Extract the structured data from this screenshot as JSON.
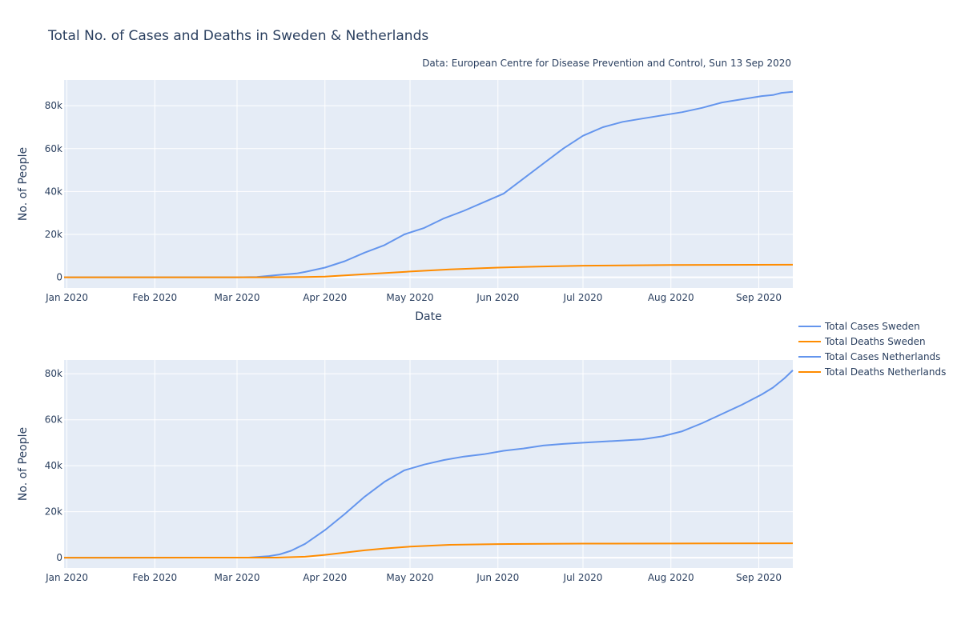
{
  "title": "Total No. of Cases and Deaths in Sweden & Netherlands",
  "source_note": "Data: European Centre for Disease Prevention and Control, Sun 13 Sep 2020",
  "legend": [
    {
      "name": "Total Cases Sweden",
      "color": "#6495ED"
    },
    {
      "name": "Total Deaths Sweden",
      "color": "#FF8C00"
    },
    {
      "name": "Total Cases Netherlands",
      "color": "#6495ED"
    },
    {
      "name": "Total Deaths Netherlands",
      "color": "#FF8C00"
    }
  ],
  "colors": {
    "plot_bg": "#E5ECF6",
    "grid": "#ffffff",
    "text": "#2a3f5f"
  },
  "chart_data": [
    {
      "type": "line",
      "xlabel": "Date",
      "ylabel": "No. of People",
      "x_range": [
        "2019-12-31",
        "2020-09-13"
      ],
      "ylim": [
        -5000,
        92000
      ],
      "x_ticks": [
        {
          "date": "2020-01-01",
          "label": "Jan 2020"
        },
        {
          "date": "2020-02-01",
          "label": "Feb 2020"
        },
        {
          "date": "2020-03-01",
          "label": "Mar 2020"
        },
        {
          "date": "2020-04-01",
          "label": "Apr 2020"
        },
        {
          "date": "2020-05-01",
          "label": "May 2020"
        },
        {
          "date": "2020-06-01",
          "label": "Jun 2020"
        },
        {
          "date": "2020-07-01",
          "label": "Jul 2020"
        },
        {
          "date": "2020-08-01",
          "label": "Aug 2020"
        },
        {
          "date": "2020-09-01",
          "label": "Sep 2020"
        }
      ],
      "y_ticks": [
        {
          "value": 0,
          "label": "0"
        },
        {
          "value": 20000,
          "label": "20k"
        },
        {
          "value": 40000,
          "label": "40k"
        },
        {
          "value": 60000,
          "label": "60k"
        },
        {
          "value": 80000,
          "label": "80k"
        }
      ],
      "series": [
        {
          "name": "Total Cases Sweden",
          "color": "#6495ED",
          "points": [
            [
              "2019-12-31",
              0
            ],
            [
              "2020-03-01",
              10
            ],
            [
              "2020-03-08",
              100
            ],
            [
              "2020-03-15",
              1000
            ],
            [
              "2020-03-22",
              1800
            ],
            [
              "2020-03-25",
              2500
            ],
            [
              "2020-04-01",
              4500
            ],
            [
              "2020-04-08",
              7500
            ],
            [
              "2020-04-15",
              11500
            ],
            [
              "2020-04-22",
              15000
            ],
            [
              "2020-04-29",
              20000
            ],
            [
              "2020-05-06",
              23000
            ],
            [
              "2020-05-13",
              27500
            ],
            [
              "2020-05-20",
              31000
            ],
            [
              "2020-05-27",
              35000
            ],
            [
              "2020-06-03",
              39000
            ],
            [
              "2020-06-10",
              46000
            ],
            [
              "2020-06-17",
              53000
            ],
            [
              "2020-06-24",
              60000
            ],
            [
              "2020-07-01",
              66000
            ],
            [
              "2020-07-08",
              70000
            ],
            [
              "2020-07-15",
              72500
            ],
            [
              "2020-07-22",
              74000
            ],
            [
              "2020-07-29",
              75500
            ],
            [
              "2020-08-05",
              77000
            ],
            [
              "2020-08-12",
              79000
            ],
            [
              "2020-08-19",
              81500
            ],
            [
              "2020-08-26",
              83000
            ],
            [
              "2020-09-02",
              84500
            ],
            [
              "2020-09-06",
              85000
            ],
            [
              "2020-09-09",
              86000
            ],
            [
              "2020-09-13",
              86500
            ]
          ]
        },
        {
          "name": "Total Deaths Sweden",
          "color": "#FF8C00",
          "points": [
            [
              "2019-12-31",
              0
            ],
            [
              "2020-03-10",
              1
            ],
            [
              "2020-03-25",
              100
            ],
            [
              "2020-04-01",
              300
            ],
            [
              "2020-04-15",
              1400
            ],
            [
              "2020-05-01",
              2700
            ],
            [
              "2020-05-15",
              3700
            ],
            [
              "2020-06-01",
              4500
            ],
            [
              "2020-06-15",
              5000
            ],
            [
              "2020-07-01",
              5400
            ],
            [
              "2020-08-01",
              5750
            ],
            [
              "2020-09-13",
              5850
            ]
          ]
        }
      ]
    },
    {
      "type": "line",
      "xlabel": "",
      "ylabel": "No. of People",
      "x_range": [
        "2019-12-31",
        "2020-09-13"
      ],
      "ylim": [
        -4500,
        86000
      ],
      "x_ticks": [
        {
          "date": "2020-01-01",
          "label": "Jan 2020"
        },
        {
          "date": "2020-02-01",
          "label": "Feb 2020"
        },
        {
          "date": "2020-03-01",
          "label": "Mar 2020"
        },
        {
          "date": "2020-04-01",
          "label": "Apr 2020"
        },
        {
          "date": "2020-05-01",
          "label": "May 2020"
        },
        {
          "date": "2020-06-01",
          "label": "Jun 2020"
        },
        {
          "date": "2020-07-01",
          "label": "Jul 2020"
        },
        {
          "date": "2020-08-01",
          "label": "Aug 2020"
        },
        {
          "date": "2020-09-01",
          "label": "Sep 2020"
        }
      ],
      "y_ticks": [
        {
          "value": 0,
          "label": "0"
        },
        {
          "value": 20000,
          "label": "20k"
        },
        {
          "value": 40000,
          "label": "40k"
        },
        {
          "value": 60000,
          "label": "60k"
        },
        {
          "value": 80000,
          "label": "80k"
        }
      ],
      "series": [
        {
          "name": "Total Cases Netherlands",
          "color": "#6495ED",
          "points": [
            [
              "2019-12-31",
              0
            ],
            [
              "2020-03-05",
              40
            ],
            [
              "2020-03-12",
              600
            ],
            [
              "2020-03-16",
              1400
            ],
            [
              "2020-03-20",
              3000
            ],
            [
              "2020-03-25",
              6000
            ],
            [
              "2020-04-01",
              12000
            ],
            [
              "2020-04-08",
              19000
            ],
            [
              "2020-04-15",
              26500
            ],
            [
              "2020-04-22",
              33000
            ],
            [
              "2020-04-29",
              38000
            ],
            [
              "2020-05-06",
              40500
            ],
            [
              "2020-05-13",
              42500
            ],
            [
              "2020-05-20",
              44000
            ],
            [
              "2020-05-27",
              45000
            ],
            [
              "2020-06-03",
              46500
            ],
            [
              "2020-06-10",
              47500
            ],
            [
              "2020-06-17",
              48800
            ],
            [
              "2020-06-24",
              49500
            ],
            [
              "2020-07-01",
              50000
            ],
            [
              "2020-07-15",
              51000
            ],
            [
              "2020-07-22",
              51500
            ],
            [
              "2020-07-29",
              52800
            ],
            [
              "2020-08-05",
              55000
            ],
            [
              "2020-08-12",
              58500
            ],
            [
              "2020-08-19",
              62500
            ],
            [
              "2020-08-26",
              66500
            ],
            [
              "2020-09-02",
              71000
            ],
            [
              "2020-09-06",
              74000
            ],
            [
              "2020-09-10",
              78000
            ],
            [
              "2020-09-13",
              81500
            ]
          ]
        },
        {
          "name": "Total Deaths Netherlands",
          "color": "#FF8C00",
          "points": [
            [
              "2019-12-31",
              0
            ],
            [
              "2020-03-15",
              20
            ],
            [
              "2020-03-25",
              400
            ],
            [
              "2020-04-01",
              1200
            ],
            [
              "2020-04-08",
              2200
            ],
            [
              "2020-04-15",
              3200
            ],
            [
              "2020-04-22",
              4000
            ],
            [
              "2020-05-01",
              4800
            ],
            [
              "2020-05-15",
              5600
            ],
            [
              "2020-06-01",
              5900
            ],
            [
              "2020-07-01",
              6100
            ],
            [
              "2020-08-01",
              6150
            ],
            [
              "2020-09-13",
              6250
            ]
          ]
        }
      ]
    }
  ]
}
